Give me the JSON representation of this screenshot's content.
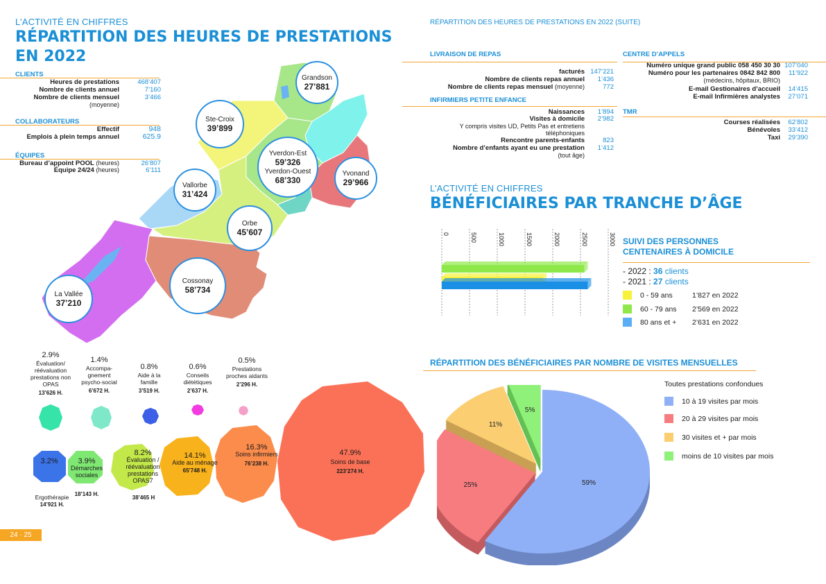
{
  "left": {
    "kicker": "L’ACTIVITÉ EN CHIFFRES",
    "title_line1": "RÉPARTITION DES HEURES DE PRESTATIONS",
    "title_line2": "EN 2022",
    "clients": {
      "head": "CLIENTS",
      "rows": [
        {
          "label": "Heures de prestations",
          "value": "468’407"
        },
        {
          "label": "Nombre de clients annuel",
          "value": "7’160"
        },
        {
          "label": "Nombre de clients mensuel",
          "sub": "(moyenne)",
          "value": "3’466"
        }
      ]
    },
    "collab": {
      "head": "COLLABORATEURS",
      "rows": [
        {
          "label": "Effectif",
          "value": "948"
        },
        {
          "label": "Emplois à plein temps annuel",
          "value": "625.9"
        }
      ]
    },
    "equipes": {
      "head": "ÉQUIPES",
      "rows": [
        {
          "label": "Bureau d’appoint POOL",
          "sub": "(heures)",
          "value": "26’807"
        },
        {
          "label": "Équipe 24/24",
          "sub": "(heures)",
          "value": "6’111"
        }
      ]
    },
    "regions": [
      {
        "name": "Grandson",
        "value": "27’881"
      },
      {
        "name": "Ste-Croix",
        "value": "39’899"
      },
      {
        "name": "Yverdon-Est",
        "value": "59’326",
        "name2": "Yverdon-Ouest",
        "value2": "68’330"
      },
      {
        "name": "Yvonand",
        "value": "29’966"
      },
      {
        "name": "Vallorbe",
        "value": "31’424"
      },
      {
        "name": "Orbe",
        "value": "45’607"
      },
      {
        "name": "Cossonay",
        "value": "58’734"
      },
      {
        "name": "La Vallée",
        "value": "37’210"
      }
    ],
    "small_stats": [
      {
        "pct": "2.9%",
        "label": "Évaluation/ réévaluation prestations non OPAS",
        "hours": "13’626 H.",
        "color": "#36e3a8"
      },
      {
        "pct": "1.4%",
        "label": "Accompa- gnement psycho-social",
        "hours": "6’672 H.",
        "color": "#7fe8c8"
      },
      {
        "pct": "0.8%",
        "label": "Aide à la famille",
        "hours": "3’519 H.",
        "color": "#3b5fe6"
      },
      {
        "pct": "0.6%",
        "label": "Conseils diététiques",
        "hours": "2’637 H.",
        "color": "#f23be0"
      },
      {
        "pct": "0.5%",
        "label": "Prestations proches aidants",
        "hours": "2’296 H.",
        "color": "#f5a0c8"
      }
    ],
    "big_stats": [
      {
        "pct": "3.2%",
        "label": "Ergothérapie",
        "hours": "14’921 H.",
        "color": "#3b73e8"
      },
      {
        "pct": "3.9%",
        "label": "Démarches sociales",
        "hours": "18’143 H.",
        "color": "#7fe873"
      },
      {
        "pct": "8.2%",
        "label": "Évaluation / réévaluation prestations OPAS7",
        "hours": "38’465 H",
        "color": "#c3e84a"
      },
      {
        "pct": "14.1%",
        "label": "Aide au ménage",
        "hours": "65’748 H.",
        "color": "#f7b21c"
      },
      {
        "pct": "16.3%",
        "label": "Soins infirmiers",
        "hours": "76’238 H.",
        "color": "#fb8c4c"
      },
      {
        "pct": "47.9%",
        "label": "Soins de base",
        "hours": "223’274 H.",
        "color": "#fb7157"
      }
    ],
    "page": "24 · 25"
  },
  "right": {
    "kicker": "RÉPARTITION DES HEURES DE PRESTATIONS EN 2022 (SUITE)",
    "livraison": {
      "head": "LIVRAISON DE REPAS",
      "rows": [
        {
          "label": "facturés",
          "value": "147’221"
        },
        {
          "label": "Nombre de clients repas annuel",
          "value": "1’436"
        },
        {
          "label": "Nombre de clients repas mensuel",
          "sub": "(moyenne)",
          "value": "772"
        }
      ]
    },
    "infirmiers": {
      "head": "INFIRMIERS PETITE ENFANCE",
      "rows": [
        {
          "label": "Naissances",
          "value": "1’894"
        },
        {
          "label": "Visites à domicile",
          "value": "2’982"
        },
        {
          "label": "",
          "sub": "Y compris visites UD, Petits Pas et entretiens",
          "value": ""
        },
        {
          "label": "",
          "sub": "téléphoniques",
          "value": ""
        },
        {
          "label": "Rencontre parents-enfants",
          "value": "823"
        },
        {
          "label": "Nombre d’enfants ayant eu une prestation",
          "value": "1’412"
        },
        {
          "label": "",
          "sub": "(tout âge)",
          "value": ""
        }
      ]
    },
    "centre": {
      "head": "CENTRE D’APPELS",
      "rows": [
        {
          "label": "Numéro unique grand public 058 450 30 30",
          "value": "107’040"
        },
        {
          "label": "Numéro pour les partenaires 0842 842 800",
          "value": "11’922"
        },
        {
          "label": "",
          "sub": "(médecins, hôpitaux, BRIO)",
          "value": ""
        },
        {
          "label": "E-mail Gestionaires d’accueil",
          "value": "14’415"
        },
        {
          "label": "E-mail Infirmières analystes",
          "value": "27’071"
        }
      ]
    },
    "tmr": {
      "head": "TMR",
      "rows": [
        {
          "label": "Courses réalisées",
          "value": "62’802"
        },
        {
          "label": "Bénévoles",
          "value": "33’412"
        },
        {
          "label": "Taxi",
          "value": "29’390"
        }
      ]
    },
    "age_kicker": "L’ACTIVITÉ EN CHIFFRES",
    "age_title": "BÉNÉFICIAIRES PAR TRANCHE D’ÂGE",
    "centenaires_title1": "SUIVI DES PERSONNES",
    "centenaires_title2": "CENTENAIRES À DOMICILE",
    "cent_2022_label": "-  2022 :",
    "cent_2022_value": "36",
    "cent_2022_unit": "clients",
    "cent_2021_label": "-  2021 :",
    "cent_2021_value": "27",
    "cent_2021_unit": "clients",
    "age_legend": [
      {
        "label": "0 - 59 ans",
        "value": "1’827 en 2022",
        "color": "#f7f13a"
      },
      {
        "label": "60 - 79 ans",
        "value": "2’569 en 2022",
        "color": "#8ee84a"
      },
      {
        "label": "80 ans et +",
        "value": "2’631 en 2022",
        "color": "#5aaef5"
      }
    ],
    "visits_title": "RÉPARTITION DES BÉNÉFICIAIRES PAR NOMBRE DE VISITES MENSUELLES",
    "visits_subtitle": "Toutes prestations confondues",
    "visits_legend": [
      {
        "label": "10 à 19 visites par mois",
        "color": "#8fb0f7"
      },
      {
        "label": "20 à 29 visites par mois",
        "color": "#f77c80"
      },
      {
        "label": "30 visites et + par mois",
        "color": "#fbce72"
      },
      {
        "label": "moins de 10 visites par mois",
        "color": "#8ff07a"
      }
    ]
  },
  "chart_data": [
    {
      "type": "bar",
      "orientation": "horizontal",
      "categories": [
        "0 - 59 ans",
        "60 - 79 ans",
        "80 ans et +"
      ],
      "values": [
        1827,
        2569,
        2631
      ],
      "colors": [
        "#f7f13a",
        "#8ee84a",
        "#1a8fe6"
      ],
      "tick_labels": [
        "0",
        "500",
        "1000",
        "1500",
        "2000",
        "2500",
        "3000"
      ],
      "xlim": [
        0,
        3000
      ]
    },
    {
      "type": "pie",
      "categories": [
        "10 à 19 visites par mois",
        "20 à 29 visites par mois",
        "30 visites et + par mois",
        "moins de 10 visites par mois"
      ],
      "values": [
        59,
        25,
        11,
        5
      ],
      "labels": [
        "59%",
        "25%",
        "11%",
        "5%"
      ],
      "colors": [
        "#8fb0f7",
        "#f77c80",
        "#fbce72",
        "#8ff07a"
      ],
      "dark_colors": [
        "#6c86c4",
        "#c35a5e",
        "#c9a053",
        "#65c054"
      ]
    }
  ]
}
